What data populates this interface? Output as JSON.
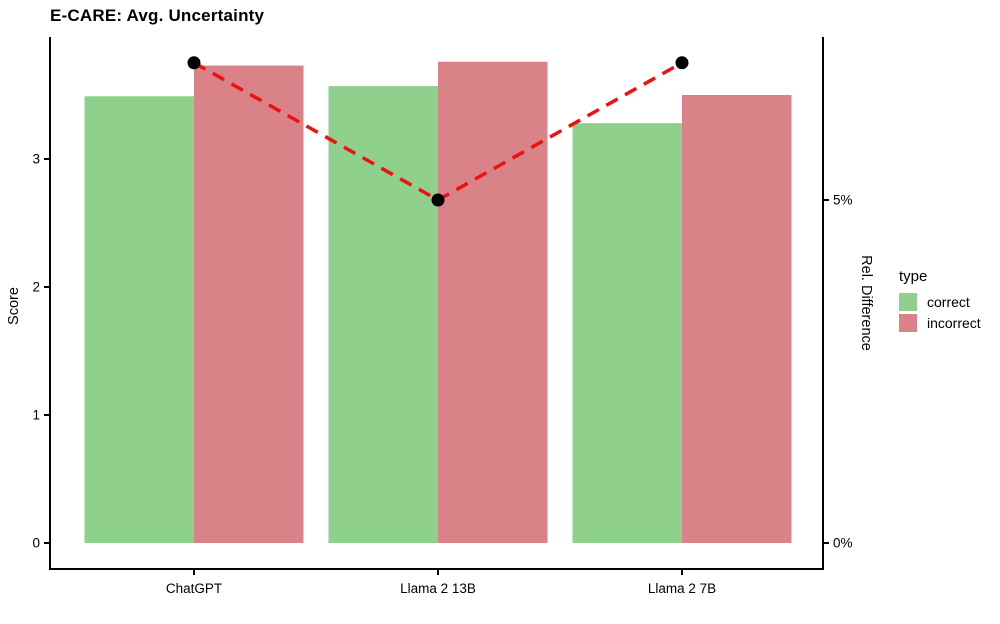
{
  "chart_data": {
    "type": "bar",
    "subtype": "grouped-bars-with-dashed-line-overlay",
    "title": "E-CARE: Avg. Uncertainty",
    "categories": [
      "ChatGPT",
      "Llama 2 13B",
      "Llama 2 7B"
    ],
    "series": [
      {
        "name": "correct",
        "color": "#8fd08c",
        "values": [
          3.49,
          3.57,
          3.28
        ]
      },
      {
        "name": "incorrect",
        "color": "#d98287",
        "values": [
          3.73,
          3.76,
          3.5
        ]
      }
    ],
    "line_series": {
      "name": "Rel. Difference",
      "color": "#ee1111",
      "style": "dashed",
      "marker_color": "#000000",
      "values_pct": [
        7.0,
        5.0,
        7.0
      ]
    },
    "y_axis_left": {
      "label": "Score",
      "tick_values": [
        0,
        1,
        2,
        3
      ],
      "tick_labels": [
        "0",
        "1",
        "2",
        "3"
      ],
      "range": [
        0,
        3.95
      ]
    },
    "y_axis_right": {
      "label": "Rel. Difference",
      "tick_values": [
        0,
        5
      ],
      "tick_labels": [
        "0%",
        "5%"
      ],
      "range_pct": [
        0,
        7.38
      ]
    },
    "x_axis": {
      "tick_labels": [
        "ChatGPT",
        "Llama 2 13B",
        "Llama 2 7B"
      ]
    },
    "legend": {
      "title": "type",
      "position": "right",
      "entries": [
        {
          "label": "correct",
          "color": "#8fd08c"
        },
        {
          "label": "incorrect",
          "color": "#d98287"
        }
      ]
    },
    "grid": "off",
    "axis_color": "#000000",
    "text_color": "#000000"
  }
}
